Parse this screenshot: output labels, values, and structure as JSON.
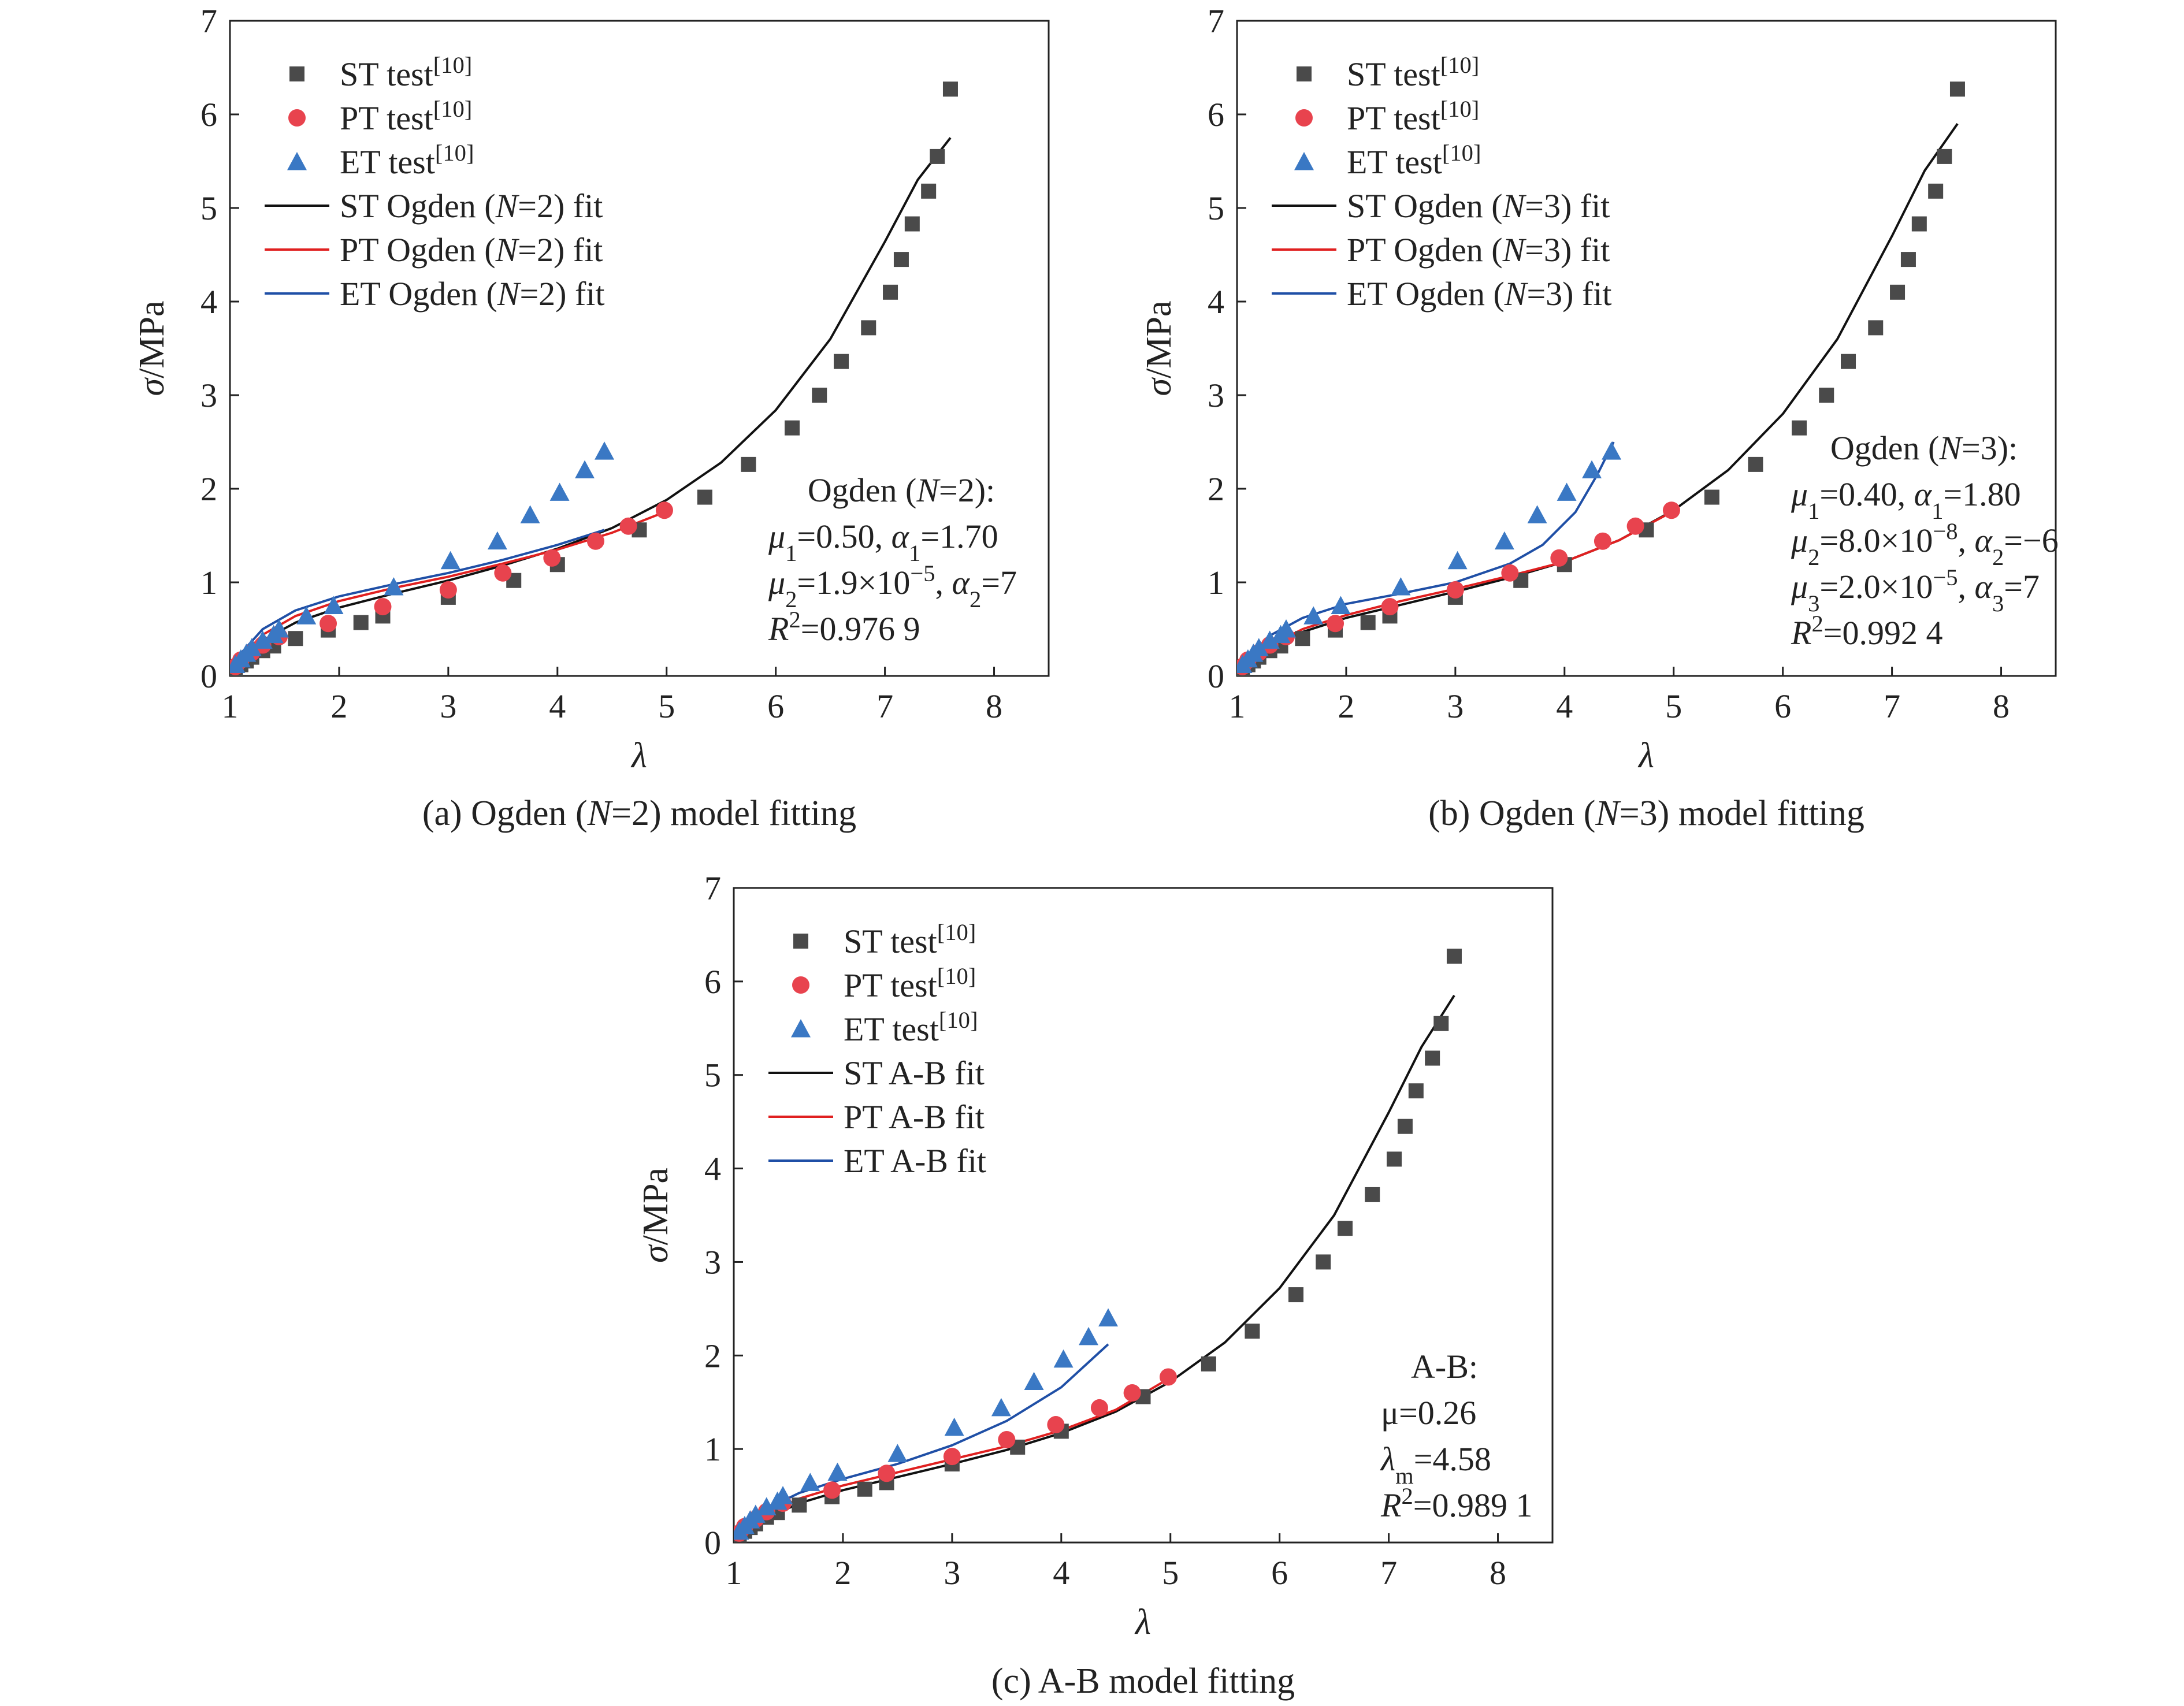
{
  "colors": {
    "st": "#4a4a4a",
    "pt": "#e8434e",
    "et": "#3a78c4",
    "st_fit": "#111111",
    "pt_fit": "#e02020",
    "et_fit": "#1f4fa6",
    "axis": "#222222"
  },
  "chart_data": [
    {
      "type": "scatter",
      "caption": "(a) Ogden (N=2) model fitting",
      "xlabel": "λ",
      "ylabel": "σ/MPa",
      "xlim": [
        1,
        8.5
      ],
      "ylim": [
        0,
        7
      ],
      "xticks": [
        "1",
        "2",
        "3",
        "4",
        "5",
        "6",
        "7",
        "8"
      ],
      "yticks": [
        "0",
        "1",
        "2",
        "3",
        "4",
        "5",
        "6",
        "7"
      ],
      "legend_position": "top-left",
      "legend": [
        "ST test[10]",
        "PT test[10]",
        "ET test[10]",
        "ST Ogden (N=2) fit",
        "PT Ogden (N=2) fit",
        "ET Ogden (N=2) fit"
      ],
      "annotation": [
        "Ogden (N=2):",
        "μ1=0.50, α1=1.70",
        "μ2=1.9×10−5, α2=7",
        "R2=0.976 9"
      ],
      "series": [
        {
          "name": "ST test[10]",
          "kind": "square",
          "color_key": "st",
          "x": [
            1.05,
            1.1,
            1.15,
            1.2,
            1.3,
            1.4,
            1.6,
            1.9,
            2.2,
            2.4,
            3.0,
            3.6,
            4.0,
            4.75,
            5.35,
            5.75,
            6.15,
            6.4,
            6.6,
            6.85,
            7.05,
            7.15,
            7.25,
            7.4,
            7.48,
            7.6
          ],
          "y": [
            0.07,
            0.12,
            0.16,
            0.2,
            0.27,
            0.32,
            0.4,
            0.49,
            0.57,
            0.64,
            0.84,
            1.02,
            1.19,
            1.56,
            1.91,
            2.26,
            2.65,
            3.0,
            3.36,
            3.72,
            4.1,
            4.45,
            4.83,
            5.18,
            5.55,
            6.27
          ]
        },
        {
          "name": "PT test[10]",
          "kind": "circle",
          "color_key": "pt",
          "x": [
            1.05,
            1.1,
            1.2,
            1.3,
            1.45,
            1.9,
            2.4,
            3.0,
            3.5,
            3.95,
            4.35,
            4.65,
            4.98
          ],
          "y": [
            0.1,
            0.17,
            0.25,
            0.33,
            0.42,
            0.56,
            0.74,
            0.92,
            1.1,
            1.26,
            1.44,
            1.6,
            1.77
          ]
        },
        {
          "name": "ET test[10]",
          "kind": "triangle",
          "color_key": "et",
          "x": [
            1.05,
            1.1,
            1.15,
            1.2,
            1.3,
            1.4,
            1.45,
            1.7,
            1.95,
            2.5,
            3.02,
            3.45,
            3.75,
            4.02,
            4.25,
            4.43
          ],
          "y": [
            0.12,
            0.18,
            0.24,
            0.3,
            0.38,
            0.44,
            0.5,
            0.64,
            0.75,
            0.95,
            1.23,
            1.44,
            1.72,
            1.96,
            2.2,
            2.4
          ]
        },
        {
          "name": "ST Ogden (N=2) fit",
          "kind": "line",
          "color_key": "st_fit",
          "x": [
            1,
            1.1,
            1.3,
            1.6,
            2,
            2.5,
            3,
            3.5,
            4,
            4.5,
            5,
            5.5,
            6,
            6.5,
            7,
            7.3,
            7.6
          ],
          "y": [
            0,
            0.17,
            0.38,
            0.57,
            0.73,
            0.88,
            1.02,
            1.18,
            1.36,
            1.58,
            1.88,
            2.28,
            2.84,
            3.6,
            4.64,
            5.3,
            5.75
          ]
        },
        {
          "name": "PT Ogden (N=2) fit",
          "kind": "line",
          "color_key": "pt_fit",
          "x": [
            1,
            1.1,
            1.3,
            1.6,
            2,
            2.5,
            3,
            3.5,
            4,
            4.5,
            4.98
          ],
          "y": [
            0,
            0.2,
            0.44,
            0.64,
            0.8,
            0.94,
            1.06,
            1.2,
            1.35,
            1.53,
            1.75
          ]
        },
        {
          "name": "ET Ogden (N=2) fit",
          "kind": "line",
          "color_key": "et_fit",
          "x": [
            1,
            1.1,
            1.3,
            1.6,
            2,
            2.5,
            3,
            3.5,
            4,
            4.43
          ],
          "y": [
            0,
            0.24,
            0.5,
            0.7,
            0.85,
            0.98,
            1.1,
            1.24,
            1.4,
            1.56
          ]
        }
      ]
    },
    {
      "type": "scatter",
      "caption": "(b) Ogden (N=3) model fitting",
      "xlabel": "λ",
      "ylabel": "σ/MPa",
      "xlim": [
        1,
        8.5
      ],
      "ylim": [
        0,
        7
      ],
      "xticks": [
        "1",
        "2",
        "3",
        "4",
        "5",
        "6",
        "7",
        "8"
      ],
      "yticks": [
        "0",
        "1",
        "2",
        "3",
        "4",
        "5",
        "6",
        "7"
      ],
      "legend_position": "top-left",
      "legend": [
        "ST test[10]",
        "PT test[10]",
        "ET test[10]",
        "ST Ogden (N=3) fit",
        "PT Ogden (N=3) fit",
        "ET Ogden (N=3) fit"
      ],
      "annotation": [
        "Ogden (N=3):",
        "μ1=0.40, α1=1.80",
        "μ2=8.0×10−8, α2=−6",
        "μ3=2.0×10−5, α3=7",
        "R2=0.992 4"
      ],
      "series": [
        {
          "name": "ST test[10]",
          "kind": "square",
          "color_key": "st",
          "x": [
            1.05,
            1.1,
            1.15,
            1.2,
            1.3,
            1.4,
            1.6,
            1.9,
            2.2,
            2.4,
            3.0,
            3.6,
            4.0,
            4.75,
            5.35,
            5.75,
            6.15,
            6.4,
            6.6,
            6.85,
            7.05,
            7.15,
            7.25,
            7.4,
            7.48,
            7.6
          ],
          "y": [
            0.07,
            0.12,
            0.16,
            0.2,
            0.27,
            0.32,
            0.4,
            0.49,
            0.57,
            0.64,
            0.84,
            1.02,
            1.19,
            1.56,
            1.91,
            2.26,
            2.65,
            3.0,
            3.36,
            3.72,
            4.1,
            4.45,
            4.83,
            5.18,
            5.55,
            6.27
          ]
        },
        {
          "name": "PT test[10]",
          "kind": "circle",
          "color_key": "pt",
          "x": [
            1.05,
            1.1,
            1.2,
            1.3,
            1.45,
            1.9,
            2.4,
            3.0,
            3.5,
            3.95,
            4.35,
            4.65,
            4.98
          ],
          "y": [
            0.1,
            0.17,
            0.25,
            0.33,
            0.42,
            0.56,
            0.74,
            0.92,
            1.1,
            1.26,
            1.44,
            1.6,
            1.77
          ]
        },
        {
          "name": "ET test[10]",
          "kind": "triangle",
          "color_key": "et",
          "x": [
            1.05,
            1.1,
            1.15,
            1.2,
            1.3,
            1.4,
            1.45,
            1.7,
            1.95,
            2.5,
            3.02,
            3.45,
            3.75,
            4.02,
            4.25,
            4.43
          ],
          "y": [
            0.12,
            0.18,
            0.24,
            0.3,
            0.38,
            0.44,
            0.5,
            0.64,
            0.75,
            0.95,
            1.23,
            1.44,
            1.72,
            1.96,
            2.2,
            2.4
          ]
        },
        {
          "name": "ST Ogden (N=3) fit",
          "kind": "line",
          "color_key": "st_fit",
          "x": [
            1,
            1.1,
            1.3,
            1.6,
            2,
            2.5,
            3,
            3.5,
            4,
            4.5,
            5,
            5.5,
            6,
            6.5,
            7,
            7.3,
            7.6
          ],
          "y": [
            0,
            0.12,
            0.3,
            0.47,
            0.62,
            0.76,
            0.9,
            1.05,
            1.22,
            1.45,
            1.77,
            2.2,
            2.8,
            3.6,
            4.7,
            5.4,
            5.9
          ]
        },
        {
          "name": "PT Ogden (N=3) fit",
          "kind": "line",
          "color_key": "pt_fit",
          "x": [
            1,
            1.1,
            1.3,
            1.6,
            2,
            2.5,
            3,
            3.5,
            4,
            4.5,
            4.98
          ],
          "y": [
            0,
            0.13,
            0.32,
            0.5,
            0.65,
            0.8,
            0.93,
            1.07,
            1.22,
            1.45,
            1.75
          ]
        },
        {
          "name": "ET Ogden (N=3) fit",
          "kind": "line",
          "color_key": "et_fit",
          "x": [
            1,
            1.1,
            1.3,
            1.6,
            2,
            2.5,
            3,
            3.5,
            3.8,
            4.1,
            4.3,
            4.45
          ],
          "y": [
            0,
            0.2,
            0.43,
            0.62,
            0.77,
            0.88,
            1.0,
            1.2,
            1.4,
            1.75,
            2.15,
            2.5
          ]
        }
      ]
    },
    {
      "type": "scatter",
      "caption": "(c) A-B model fitting",
      "xlabel": "λ",
      "ylabel": "σ/MPa",
      "xlim": [
        1,
        8.5
      ],
      "ylim": [
        0,
        7
      ],
      "xticks": [
        "1",
        "2",
        "3",
        "4",
        "5",
        "6",
        "7",
        "8"
      ],
      "yticks": [
        "0",
        "1",
        "2",
        "3",
        "4",
        "5",
        "6",
        "7"
      ],
      "legend_position": "top-left",
      "legend": [
        "ST test[10]",
        "PT test[10]",
        "ET test[10]",
        "ST A-B fit",
        "PT A-B fit",
        "ET A-B fit"
      ],
      "annotation": [
        "A-B:",
        "μ=0.26",
        "λm=4.58",
        "R2=0.989 1"
      ],
      "series": [
        {
          "name": "ST test[10]",
          "kind": "square",
          "color_key": "st",
          "x": [
            1.05,
            1.1,
            1.15,
            1.2,
            1.3,
            1.4,
            1.6,
            1.9,
            2.2,
            2.4,
            3.0,
            3.6,
            4.0,
            4.75,
            5.35,
            5.75,
            6.15,
            6.4,
            6.6,
            6.85,
            7.05,
            7.15,
            7.25,
            7.4,
            7.48,
            7.6
          ],
          "y": [
            0.07,
            0.12,
            0.16,
            0.2,
            0.27,
            0.32,
            0.4,
            0.49,
            0.57,
            0.64,
            0.84,
            1.02,
            1.19,
            1.56,
            1.91,
            2.26,
            2.65,
            3.0,
            3.36,
            3.72,
            4.1,
            4.45,
            4.83,
            5.18,
            5.55,
            6.27
          ]
        },
        {
          "name": "PT test[10]",
          "kind": "circle",
          "color_key": "pt",
          "x": [
            1.05,
            1.1,
            1.2,
            1.3,
            1.45,
            1.9,
            2.4,
            3.0,
            3.5,
            3.95,
            4.35,
            4.65,
            4.98
          ],
          "y": [
            0.1,
            0.17,
            0.25,
            0.33,
            0.42,
            0.56,
            0.74,
            0.92,
            1.1,
            1.26,
            1.44,
            1.6,
            1.77
          ]
        },
        {
          "name": "ET test[10]",
          "kind": "triangle",
          "color_key": "et",
          "x": [
            1.05,
            1.1,
            1.15,
            1.2,
            1.3,
            1.4,
            1.45,
            1.7,
            1.95,
            2.5,
            3.02,
            3.45,
            3.75,
            4.02,
            4.25,
            4.43
          ],
          "y": [
            0.12,
            0.18,
            0.24,
            0.3,
            0.38,
            0.44,
            0.5,
            0.64,
            0.75,
            0.95,
            1.23,
            1.44,
            1.72,
            1.96,
            2.2,
            2.4
          ]
        },
        {
          "name": "ST A-B fit",
          "kind": "line",
          "color_key": "st_fit",
          "x": [
            1,
            1.1,
            1.3,
            1.6,
            2,
            2.5,
            3,
            3.5,
            4,
            4.5,
            5,
            5.5,
            6,
            6.5,
            7,
            7.3,
            7.6
          ],
          "y": [
            0,
            0.1,
            0.26,
            0.42,
            0.56,
            0.7,
            0.84,
            0.99,
            1.17,
            1.4,
            1.72,
            2.14,
            2.72,
            3.5,
            4.6,
            5.3,
            5.85
          ]
        },
        {
          "name": "PT A-B fit",
          "kind": "line",
          "color_key": "pt_fit",
          "x": [
            1,
            1.1,
            1.3,
            1.6,
            2,
            2.5,
            3,
            3.5,
            4,
            4.5,
            4.98
          ],
          "y": [
            0,
            0.12,
            0.3,
            0.47,
            0.61,
            0.75,
            0.89,
            1.03,
            1.2,
            1.42,
            1.75
          ]
        },
        {
          "name": "ET A-B fit",
          "kind": "line",
          "color_key": "et_fit",
          "x": [
            1,
            1.1,
            1.3,
            1.6,
            2,
            2.5,
            3,
            3.5,
            4,
            4.43
          ],
          "y": [
            0,
            0.15,
            0.36,
            0.53,
            0.68,
            0.84,
            1.04,
            1.3,
            1.66,
            2.12
          ]
        }
      ]
    }
  ]
}
